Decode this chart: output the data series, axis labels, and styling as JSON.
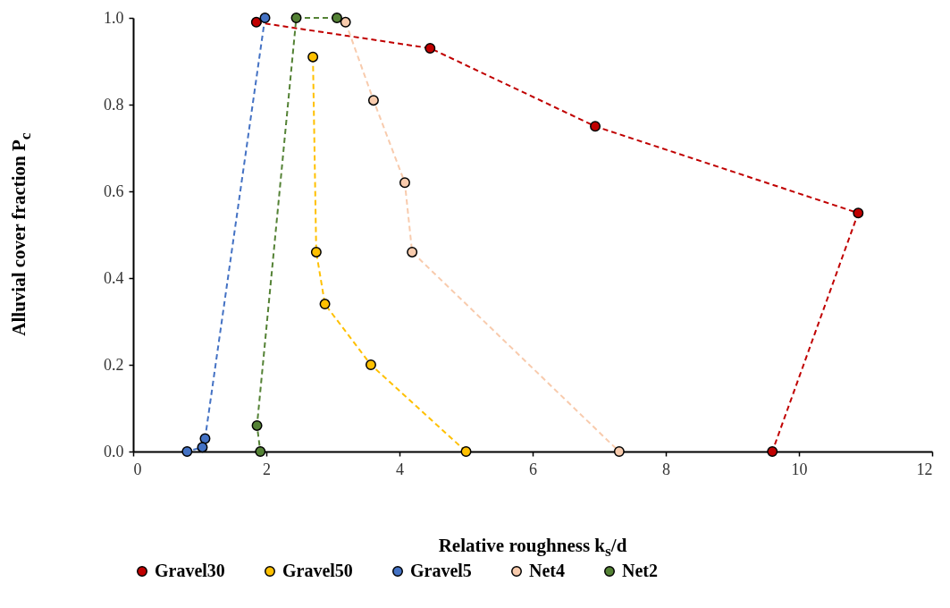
{
  "chart_data": {
    "type": "line",
    "xlabel": "Relative roughness k$_{s}$/d",
    "ylabel": "Alluvial cover fraction P$_{c}$",
    "xlim": [
      0,
      12
    ],
    "xticks": [
      0,
      2,
      4,
      6,
      8,
      10,
      12
    ],
    "ylim": [
      0,
      1
    ],
    "yticks": [
      {
        "value": 0,
        "label": "0.0"
      },
      {
        "value": 0.2,
        "label": "0.2"
      },
      {
        "value": 0.4,
        "label": "0.4"
      },
      {
        "value": 0.6,
        "label": "0.6"
      },
      {
        "value": 0.8,
        "label": "0.8"
      },
      {
        "value": 1,
        "label": "1.0"
      }
    ],
    "grid": false,
    "legend": "bottom",
    "marker": "circle",
    "line_style": "dashed",
    "series": [
      {
        "name": "Gravel30",
        "color": "#c00000",
        "x": [
          1.85,
          4.46,
          6.94,
          10.89,
          9.6
        ],
        "values": [
          0.99,
          0.93,
          0.75,
          0.55,
          0
        ]
      },
      {
        "name": "Gravel50",
        "color": "#ffc000",
        "x": [
          2.7,
          2.75,
          2.88,
          3.57,
          5.0
        ],
        "values": [
          0.91,
          0.46,
          0.34,
          0.2,
          0
        ]
      },
      {
        "name": "Gravel5",
        "color": "#4472c4",
        "x": [
          1.98,
          1.08,
          1.04,
          0.81
        ],
        "values": [
          1,
          0.03,
          0.01,
          0
        ]
      },
      {
        "name": "Net4",
        "color": "#f8cbad",
        "x": [
          3.19,
          3.61,
          4.08,
          4.19,
          7.3
        ],
        "values": [
          0.99,
          0.81,
          0.62,
          0.46,
          0
        ]
      },
      {
        "name": "Net2",
        "color": "#548235",
        "x": [
          3.06,
          2.45,
          1.86,
          1.91
        ],
        "values": [
          1,
          1,
          0.06,
          0
        ]
      }
    ]
  }
}
